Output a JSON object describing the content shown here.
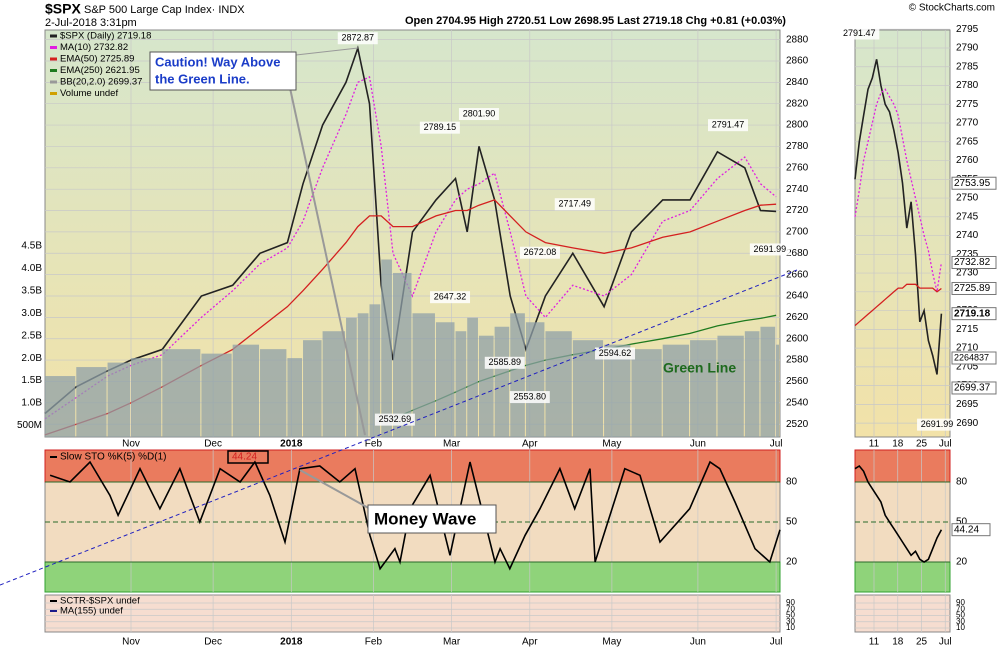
{
  "header": {
    "symbol": "$SPX",
    "name": "S&P 500 Large Cap Index· INDX",
    "datetime": "2-Jul-2018 3:31pm",
    "quote": "Open 2704.95  High 2720.51  Low 2698.95  Last 2719.18  Chg +0.81 (+0.03%)",
    "credit": "© StockCharts.com"
  },
  "callouts": {
    "caution": "Caution! Way Above",
    "caution2": "the Green Line.",
    "money": "Money Wave",
    "green": "Green Line"
  },
  "chart_data": [
    {
      "type": "line",
      "grid": true,
      "x": [
        0,
        8,
        16,
        22,
        30,
        40,
        48,
        55,
        62,
        66,
        71,
        77,
        80,
        83,
        86,
        89,
        94,
        100,
        105,
        108,
        111,
        115,
        119,
        123,
        128,
        135,
        143,
        150,
        158,
        165,
        172,
        179,
        183,
        187
      ],
      "xlim": [
        0,
        188
      ],
      "xticks": [
        {
          "value": 22,
          "label": "Nov"
        },
        {
          "value": 43,
          "label": "Dec"
        },
        {
          "value": 63,
          "label": "2018"
        },
        {
          "value": 84,
          "label": "Feb"
        },
        {
          "value": 104,
          "label": "Mar"
        },
        {
          "value": 124,
          "label": "Apr"
        },
        {
          "value": 145,
          "label": "May"
        },
        {
          "value": 167,
          "label": "Jun"
        },
        {
          "value": 187,
          "label": "Jul"
        }
      ],
      "ylim": [
        2508,
        2889
      ],
      "yticks": [
        2520,
        2540,
        2560,
        2580,
        2600,
        2620,
        2640,
        2660,
        2680,
        2700,
        2720,
        2740,
        2760,
        2780,
        2800,
        2820,
        2840,
        2860,
        2880
      ],
      "y2lim": [
        0.24,
        9.32
      ],
      "y2ticks": [
        {
          "value": 0.5,
          "label": "500M"
        },
        {
          "value": 1,
          "label": "1.0B"
        },
        {
          "value": 1.5,
          "label": "1.5B"
        },
        {
          "value": 2,
          "label": "2.0B"
        },
        {
          "value": 2.5,
          "label": "2.5B"
        },
        {
          "value": 3,
          "label": "3.0B"
        },
        {
          "value": 3.5,
          "label": "3.5B"
        },
        {
          "value": 4,
          "label": "4.0B"
        },
        {
          "value": 4.5,
          "label": "4.5B"
        }
      ],
      "series": [
        {
          "name": "$SPX (Daily) 2719.18",
          "color": "#222222",
          "values": [
            2530,
            2555,
            2570,
            2580,
            2590,
            2640,
            2650,
            2680,
            2690,
            2745,
            2800,
            2840,
            2872,
            2820,
            2650,
            2580,
            2700,
            2730,
            2750,
            2700,
            2780,
            2730,
            2640,
            2590,
            2640,
            2680,
            2630,
            2700,
            2730,
            2730,
            2775,
            2760,
            2720,
            2719.18
          ]
        },
        {
          "name": "MA(10) 2732.82",
          "color": "#e020e0",
          "style": "dotted",
          "values": [
            2525,
            2545,
            2565,
            2575,
            2585,
            2620,
            2645,
            2670,
            2685,
            2710,
            2760,
            2810,
            2840,
            2845,
            2780,
            2680,
            2640,
            2700,
            2730,
            2740,
            2745,
            2755,
            2700,
            2640,
            2620,
            2650,
            2640,
            2660,
            2710,
            2720,
            2750,
            2770,
            2745,
            2732.82
          ]
        },
        {
          "name": "EMA(50) 2725.89",
          "color": "#d42020",
          "values": [
            2510,
            2520,
            2530,
            2540,
            2555,
            2575,
            2590,
            2610,
            2630,
            2645,
            2665,
            2690,
            2705,
            2715,
            2715,
            2705,
            2705,
            2715,
            2720,
            2720,
            2725,
            2730,
            2715,
            2700,
            2690,
            2685,
            2680,
            2685,
            2695,
            2700,
            2710,
            2720,
            2725,
            2725.89
          ]
        },
        {
          "name": "EMA(250) 2621.95",
          "color": "#1e7a1e",
          "values": [
            null,
            null,
            null,
            null,
            null,
            null,
            null,
            null,
            null,
            null,
            null,
            null,
            null,
            null,
            null,
            2525,
            2533,
            2542,
            2550,
            2555,
            2560,
            2565,
            2570,
            2575,
            2580,
            2585,
            2590,
            2595,
            2600,
            2605,
            2612,
            2617,
            2619,
            2621.95
          ]
        },
        {
          "name": "Volume undef",
          "color": "#8fa0a8",
          "type": "bar",
          "axis": "y2",
          "values": [
            1.6,
            1.8,
            1.9,
            2.0,
            2.2,
            2.1,
            2.3,
            2.2,
            2.0,
            2.4,
            2.6,
            2.9,
            3.0,
            3.2,
            4.2,
            3.9,
            3.0,
            2.8,
            2.6,
            2.9,
            2.5,
            2.7,
            3.0,
            2.8,
            2.6,
            2.4,
            2.3,
            2.2,
            2.3,
            2.4,
            2.5,
            2.6,
            2.7,
            2.3
          ]
        }
      ],
      "legend_extra": [
        "BB(20,2.0) 2699.37"
      ],
      "high_labels": [
        {
          "x": 80,
          "value": 2872.87,
          "label": "2872.87"
        },
        {
          "x": 101,
          "value": 2789.15,
          "label": "2789.15"
        },
        {
          "x": 111,
          "value": 2801.9,
          "label": "2801.90"
        },
        {
          "x": 135.5,
          "value": 2717.49,
          "label": "2717.49"
        },
        {
          "x": 126.6,
          "value": 2672.08,
          "label": "2672.08"
        },
        {
          "x": 174.7,
          "value": 2791.47,
          "label": "2791.47"
        }
      ],
      "low_labels": [
        {
          "x": 103.6,
          "value": 2647.32,
          "label": "2647.32"
        },
        {
          "x": 117.6,
          "value": 2585.89,
          "label": "2585.89"
        },
        {
          "x": 124,
          "value": 2553.8,
          "label": "2553.80"
        },
        {
          "x": 145.8,
          "value": 2594.62,
          "label": "2594.62"
        },
        {
          "x": 89.5,
          "value": 2532.69,
          "label": "2532.69"
        },
        {
          "x": 185.4,
          "value": 2691.99,
          "label": "2691.99"
        }
      ]
    },
    {
      "type": "line",
      "title": "Slow STO %K(5) %D(1)",
      "ylim": [
        -2.5,
        104
      ],
      "yticks": [
        20,
        50,
        80
      ],
      "x": [
        1.3,
        6.4,
        11.5,
        16.6,
        18.7,
        24.3,
        29.4,
        34.5,
        39.6,
        44.8,
        49.9,
        53.7,
        57.5,
        61.4,
        65.2,
        70.3,
        75.4,
        79.3,
        83.1,
        85.7,
        89.5,
        90.8,
        93.4,
        98.5,
        103.6,
        108.7,
        115.1,
        116.4,
        118.9,
        122.8,
        126.6,
        131.7,
        135.5,
        139.4,
        140.7,
        148.3,
        152.2,
        157.3,
        164.9,
        170.1,
        172.6,
        176.5,
        181.6,
        185.4,
        188
      ],
      "xlim": [
        0,
        188
      ],
      "series": [
        {
          "name": "%K",
          "color": "#000000",
          "values": [
            85,
            80,
            95,
            70,
            55,
            90,
            60,
            90,
            50,
            90,
            80,
            95,
            70,
            35,
            90,
            92,
            80,
            90,
            40,
            15,
            30,
            20,
            60,
            85,
            25,
            95,
            20,
            30,
            15,
            40,
            60,
            90,
            60,
            90,
            20,
            90,
            85,
            35,
            60,
            95,
            90,
            65,
            30,
            20,
            44.24
          ]
        }
      ]
    },
    {
      "type": "line",
      "ylim": [
        -2.8,
        115.6
      ],
      "yticks": [
        10,
        30,
        50,
        70,
        90
      ],
      "xlim": [
        0,
        188
      ],
      "series": [
        {
          "name": "SCTR-$SPX undef",
          "color": "#000000",
          "values": []
        },
        {
          "name": "MA(155) undef",
          "color": "#1a1a8a",
          "values": []
        }
      ]
    },
    {
      "type": "line",
      "x": [
        0,
        1,
        2,
        3,
        4,
        5,
        6,
        7,
        8,
        9,
        10,
        11,
        12,
        13,
        14,
        15,
        16,
        17,
        18,
        19,
        20
      ],
      "xlim": [
        0,
        22
      ],
      "xticks": [
        {
          "value": 4.4,
          "label": "11"
        },
        {
          "value": 9.9,
          "label": "18"
        },
        {
          "value": 15.4,
          "label": "25"
        },
        {
          "value": 20.9,
          "label": "Jul"
        }
      ],
      "ylim": [
        2686.3,
        2794.8
      ],
      "yticks": [
        2690,
        2695,
        2700,
        2705,
        2710,
        2715,
        2720,
        2725,
        2730,
        2735,
        2740,
        2745,
        2750,
        2755,
        2760,
        2765,
        2770,
        2775,
        2780,
        2785,
        2790,
        2795
      ],
      "series": [
        {
          "name": "Close",
          "color": "#222222",
          "values": [
            2755,
            2765,
            2772,
            2779,
            2782,
            2787,
            2780,
            2775,
            2773,
            2768,
            2762,
            2754,
            2742,
            2749,
            2735,
            2717,
            2720,
            2712,
            2708,
            2703,
            2719.18
          ]
        },
        {
          "name": "MA(10)",
          "color": "#e020e0",
          "style": "dotted",
          "values": [
            2745,
            2752,
            2760,
            2765,
            2770,
            2775,
            2778,
            2779,
            2777,
            2775,
            2772,
            2766,
            2760,
            2755,
            2750,
            2745,
            2740,
            2736,
            2730,
            2725,
            2732.82
          ]
        },
        {
          "name": "EMA(50)",
          "color": "#d42020",
          "values": [
            2716,
            2717,
            2718,
            2719,
            2720,
            2721,
            2722,
            2723,
            2724,
            2725,
            2726,
            2726,
            2727,
            2727,
            2727,
            2726,
            2726,
            2726,
            2726,
            2725,
            2725.89
          ]
        }
      ],
      "tags": [
        2753.95,
        2732.82,
        2725.89,
        2719.18,
        2699.37
      ],
      "volume_tag": 2264837,
      "high_labels": [
        {
          "x": 1,
          "value": 2791.47,
          "label": "2791.47"
        }
      ],
      "low_labels": [
        {
          "x": 19,
          "value": 2691.99,
          "label": "2691.99"
        }
      ]
    },
    {
      "type": "line",
      "ylim": [
        -2.5,
        104
      ],
      "yticks": [
        20,
        50,
        80
      ],
      "x": [
        0,
        1,
        2,
        3,
        4,
        5,
        6,
        7,
        8,
        9,
        10,
        11,
        12,
        13,
        14,
        15,
        16,
        17,
        18,
        19,
        20
      ],
      "xlim": [
        0,
        22
      ],
      "series": [
        {
          "name": "%K",
          "color": "#000000",
          "values": [
            90,
            92,
            88,
            80,
            75,
            70,
            65,
            55,
            50,
            45,
            40,
            35,
            30,
            25,
            28,
            22,
            20,
            22,
            30,
            38,
            44.24
          ]
        }
      ]
    },
    {
      "type": "line",
      "ylim": [
        -2.8,
        115.6
      ],
      "yticks": [
        10,
        30,
        50,
        70,
        90
      ],
      "xlim": [
        0,
        22
      ]
    }
  ]
}
